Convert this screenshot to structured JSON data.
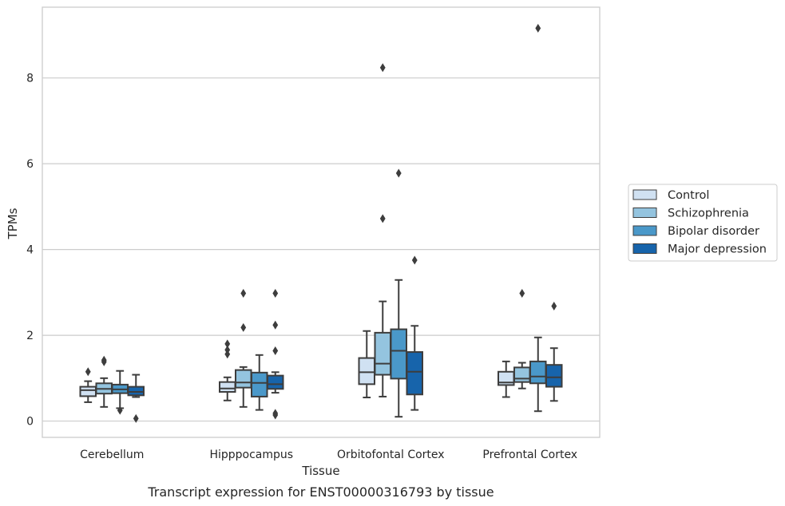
{
  "chart_data": {
    "type": "box",
    "title": "",
    "caption": "Transcript expression for ENST00000316793 by tissue",
    "xlabel": "Tissue",
    "ylabel": "TPMs",
    "ylim": [
      -0.38,
      9.65
    ],
    "yticks": [
      0,
      2,
      4,
      6,
      8
    ],
    "grid": true,
    "legend_position": "right",
    "categories": [
      "Cerebellum",
      "Hipppocampus",
      "Orbitofontal Cortex",
      "Prefrontal Cortex"
    ],
    "series": [
      {
        "name": "Control",
        "color": "#d0e1f2",
        "boxes": [
          {
            "whislo": 0.44,
            "q1": 0.58,
            "med": 0.72,
            "q3": 0.8,
            "whishi": 0.93,
            "fliers": [
              1.15
            ]
          },
          {
            "whislo": 0.48,
            "q1": 0.68,
            "med": 0.76,
            "q3": 0.91,
            "whishi": 1.02,
            "fliers": [
              1.56,
              1.66,
              1.8
            ]
          },
          {
            "whislo": 0.55,
            "q1": 0.86,
            "med": 1.14,
            "q3": 1.47,
            "whishi": 2.1,
            "fliers": []
          },
          {
            "whislo": 0.56,
            "q1": 0.84,
            "med": 0.9,
            "q3": 1.15,
            "whishi": 1.39,
            "fliers": []
          }
        ]
      },
      {
        "name": "Schizophrenia",
        "color": "#94c4df",
        "boxes": [
          {
            "whislo": 0.33,
            "q1": 0.64,
            "med": 0.75,
            "q3": 0.88,
            "whishi": 1.0,
            "fliers": [
              1.38,
              1.42
            ]
          },
          {
            "whislo": 0.33,
            "q1": 0.78,
            "med": 0.9,
            "q3": 1.19,
            "whishi": 1.26,
            "fliers": [
              2.18,
              2.98
            ]
          },
          {
            "whislo": 0.57,
            "q1": 1.08,
            "med": 1.34,
            "q3": 2.06,
            "whishi": 2.79,
            "fliers": [
              4.72,
              8.24
            ]
          },
          {
            "whislo": 0.76,
            "q1": 0.91,
            "med": 0.99,
            "q3": 1.25,
            "whishi": 1.36,
            "fliers": [
              2.98
            ]
          }
        ]
      },
      {
        "name": "Bipolar disorder",
        "color": "#4a98c9",
        "boxes": [
          {
            "whislo": 0.3,
            "q1": 0.65,
            "med": 0.74,
            "q3": 0.85,
            "whishi": 1.17,
            "fliers": [
              0.25
            ]
          },
          {
            "whislo": 0.26,
            "q1": 0.57,
            "med": 0.89,
            "q3": 1.13,
            "whishi": 1.54,
            "fliers": []
          },
          {
            "whislo": 0.1,
            "q1": 0.99,
            "med": 1.64,
            "q3": 2.14,
            "whishi": 3.29,
            "fliers": [
              5.78
            ]
          },
          {
            "whislo": 0.23,
            "q1": 0.88,
            "med": 1.04,
            "q3": 1.39,
            "whishi": 1.95,
            "fliers": [
              9.16
            ]
          }
        ]
      },
      {
        "name": "Major depression",
        "color": "#1764ab",
        "boxes": [
          {
            "whislo": 0.56,
            "q1": 0.6,
            "med": 0.68,
            "q3": 0.8,
            "whishi": 1.08,
            "fliers": [
              0.06
            ]
          },
          {
            "whislo": 0.66,
            "q1": 0.75,
            "med": 0.86,
            "q3": 1.06,
            "whishi": 1.14,
            "fliers": [
              0.14,
              0.18,
              1.64,
              2.24,
              2.98
            ]
          },
          {
            "whislo": 0.26,
            "q1": 0.62,
            "med": 1.15,
            "q3": 1.61,
            "whishi": 2.22,
            "fliers": [
              3.75
            ]
          },
          {
            "whislo": 0.47,
            "q1": 0.8,
            "med": 1.02,
            "q3": 1.31,
            "whishi": 1.7,
            "fliers": [
              2.68
            ]
          }
        ]
      }
    ]
  }
}
